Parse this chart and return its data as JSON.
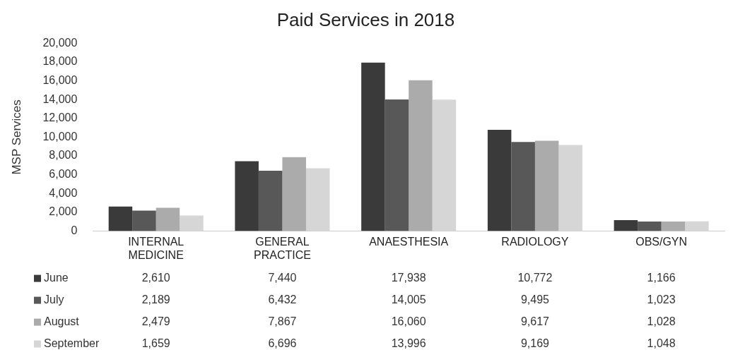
{
  "chart_data": {
    "type": "bar",
    "title": "Paid Services in 2018",
    "ylabel": "MSP Services",
    "categories": [
      "INTERNAL MEDICINE",
      "GENERAL PRACTICE",
      "ANAESTHESIA",
      "RADIOLOGY",
      "OBS/GYN"
    ],
    "series": [
      {
        "name": "June",
        "color": "#3a3a3a",
        "values": [
          2610,
          7440,
          17938,
          10772,
          1166
        ],
        "value_labels": [
          "2,610",
          "7,440",
          "17,938",
          "10,772",
          "1,166"
        ]
      },
      {
        "name": "July",
        "color": "#585858",
        "values": [
          2189,
          6432,
          14005,
          9495,
          1023
        ],
        "value_labels": [
          "2,189",
          "6,432",
          "14,005",
          "9,495",
          "1,023"
        ]
      },
      {
        "name": "August",
        "color": "#ababab",
        "values": [
          2479,
          7867,
          16060,
          9617,
          1028
        ],
        "value_labels": [
          "2,479",
          "7,867",
          "16,060",
          "9,617",
          "1,028"
        ]
      },
      {
        "name": "September",
        "color": "#d6d6d6",
        "values": [
          1659,
          6696,
          13996,
          9169,
          1048
        ],
        "value_labels": [
          "1,659",
          "6,696",
          "13,996",
          "9,169",
          "1,048"
        ]
      }
    ],
    "ylim": [
      0,
      20000
    ],
    "yticks": [
      0,
      {
        "value": 2000,
        "label": "2,000"
      },
      {
        "value": 4000,
        "label": "4,000"
      },
      {
        "value": 6000,
        "label": "6,000"
      },
      {
        "value": 8000,
        "label": "8,000"
      },
      {
        "value": 10000,
        "label": "10,000"
      },
      {
        "value": 12000,
        "label": "12,000"
      },
      {
        "value": 14000,
        "label": "14,000"
      },
      {
        "value": 16000,
        "label": "16,000"
      },
      {
        "value": 18000,
        "label": "18,000"
      },
      {
        "value": 20000,
        "label": "20,000"
      }
    ],
    "grid": false,
    "legend": "bottom"
  }
}
